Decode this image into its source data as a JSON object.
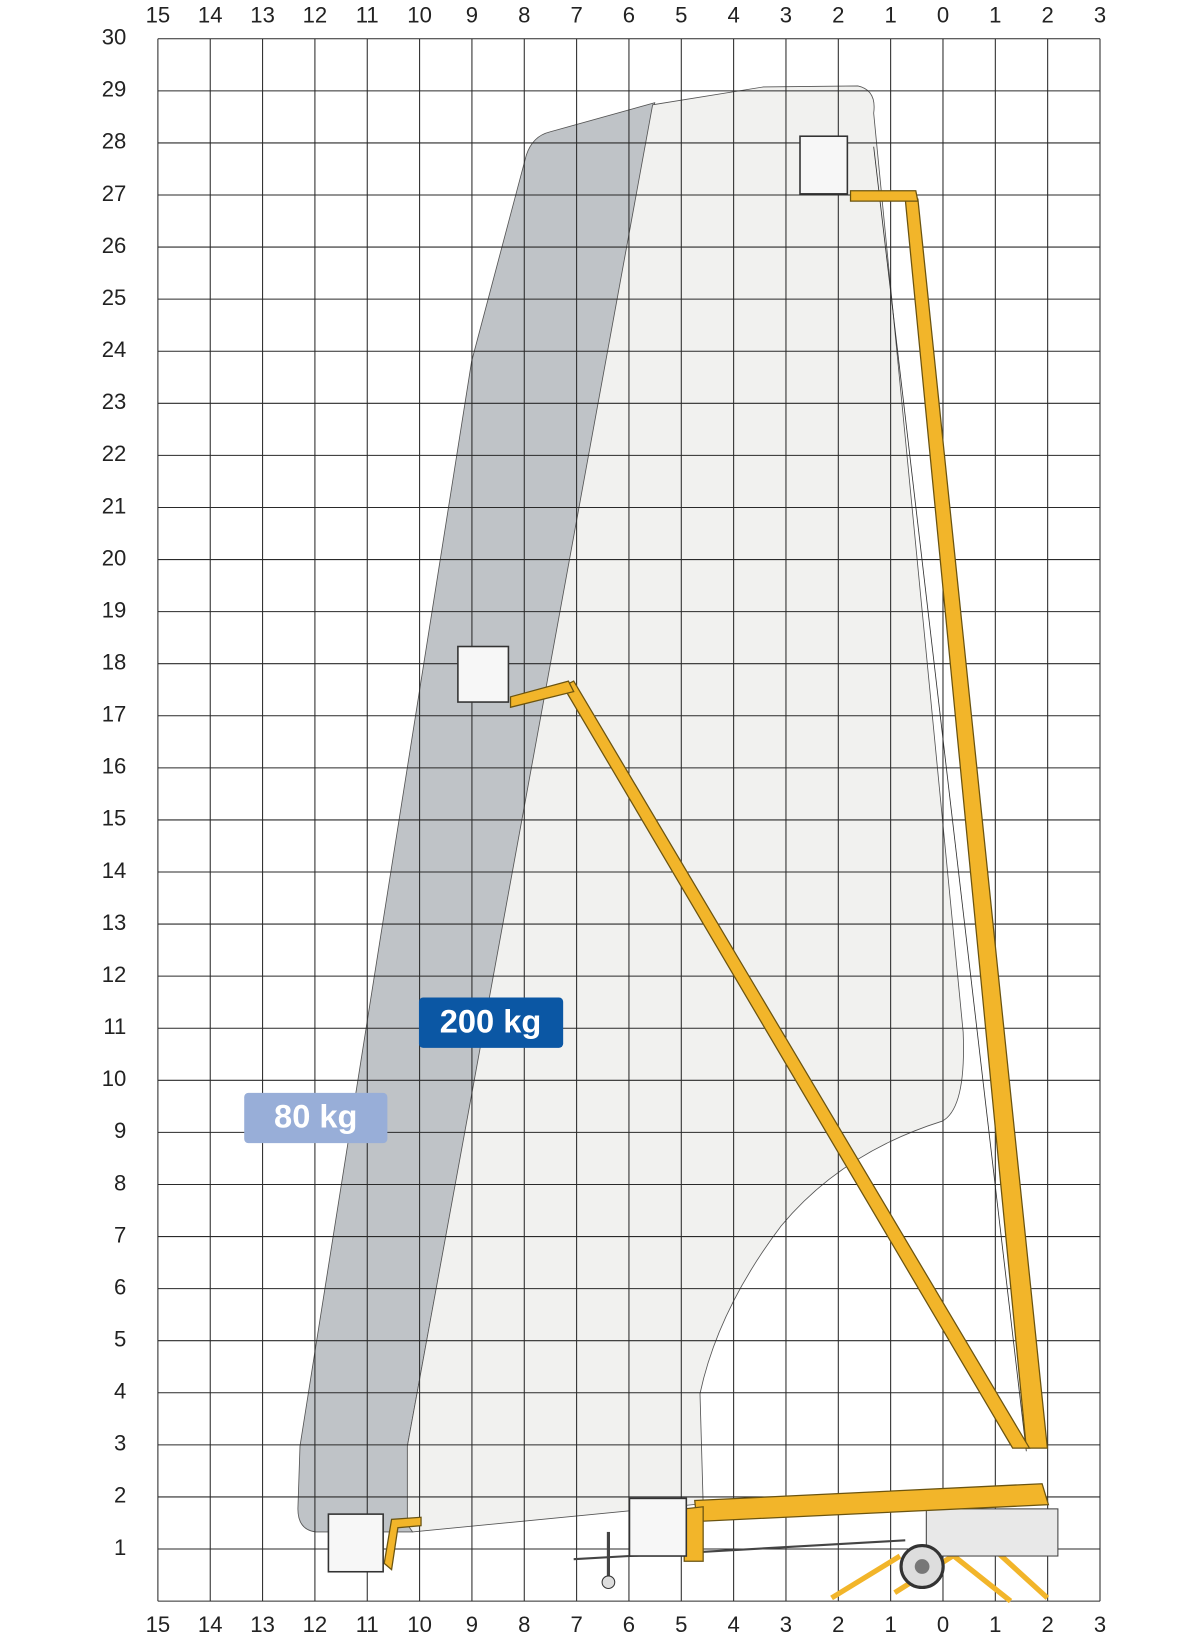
{
  "axes": {
    "top": [
      15,
      14,
      13,
      12,
      11,
      10,
      9,
      8,
      7,
      6,
      5,
      4,
      3,
      2,
      1,
      0,
      1,
      2,
      3
    ],
    "bottom": [
      15,
      14,
      13,
      12,
      11,
      10,
      9,
      8,
      7,
      6,
      5,
      4,
      3,
      2,
      1,
      0,
      1,
      2,
      3
    ],
    "left": [
      30,
      29,
      28,
      27,
      26,
      25,
      24,
      23,
      22,
      21,
      20,
      19,
      18,
      17,
      16,
      15,
      14,
      13,
      12,
      11,
      10,
      9,
      8,
      7,
      6,
      5,
      4,
      3,
      2,
      1
    ]
  },
  "loads": {
    "heavy": "200 kg",
    "light": "80 kg"
  }
}
